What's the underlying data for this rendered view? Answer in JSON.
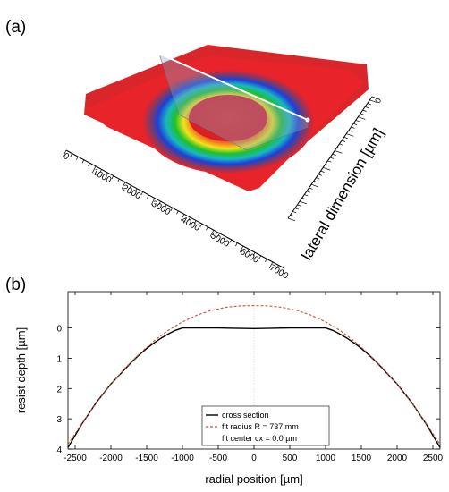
{
  "panel_labels": {
    "a": "(a)",
    "b": "(b)"
  },
  "colors": {
    "surface": "#e8232a",
    "ring_green": "#1fc02a",
    "ring_blue": "#1f3fd8",
    "ring_yellow": "#f2e21c",
    "cross_section": "#000000",
    "fit": "#c8503c"
  },
  "chart_data": [
    {
      "type": "surface3d",
      "axis_label": "lateral dimension [µm]",
      "x_tick_labels": [
        "0",
        "1000",
        "2000",
        "3000",
        "4000",
        "5000",
        "6000",
        "7000"
      ],
      "y_tick_labels": [
        "0"
      ]
    },
    {
      "type": "line",
      "xlabel": "radial position [µm]",
      "ylabel": "resist depth [µm]",
      "xlim": [
        -2600,
        2600
      ],
      "ylim": [
        4,
        -1.2
      ],
      "y_inverted": true,
      "x_ticks": [
        -2500,
        -2000,
        -1500,
        -1000,
        -500,
        0,
        500,
        1000,
        1500,
        2000,
        2500
      ],
      "y_ticks": [
        0,
        1,
        2,
        3,
        4
      ],
      "x_tick_labels": [
        "-2500",
        "-2000",
        "-1500",
        "-1000",
        "-500",
        "0",
        "500",
        "1000",
        "1500",
        "2000",
        "2500"
      ],
      "y_tick_labels": [
        "0",
        "1",
        "2",
        "3",
        "4"
      ],
      "grid": false,
      "center_line_x": 0,
      "series": [
        {
          "name": "cross section",
          "style": "solid",
          "x": [
            -2600,
            -2500,
            -2400,
            -2300,
            -2200,
            -2100,
            -2000,
            -1900,
            -1800,
            -1700,
            -1600,
            -1500,
            -1400,
            -1300,
            -1200,
            -1100,
            -1000,
            -500,
            0,
            500,
            1000,
            1100,
            1200,
            1300,
            1400,
            1500,
            1600,
            1700,
            1800,
            1900,
            2000,
            2100,
            2200,
            2300,
            2400,
            2500,
            2600
          ],
          "y": [
            3.95,
            3.55,
            3.15,
            2.8,
            2.45,
            2.15,
            1.85,
            1.6,
            1.35,
            1.1,
            0.88,
            0.68,
            0.5,
            0.34,
            0.2,
            0.08,
            0.0,
            0.0,
            0.02,
            0.0,
            0.0,
            0.08,
            0.2,
            0.34,
            0.5,
            0.68,
            0.88,
            1.1,
            1.35,
            1.6,
            1.85,
            2.15,
            2.45,
            2.8,
            3.15,
            3.55,
            3.95
          ]
        },
        {
          "name": "fit radius R = 737 mm",
          "style": "dashed",
          "x": [
            -2600,
            -2400,
            -2200,
            -2000,
            -1800,
            -1600,
            -1400,
            -1200,
            -1000,
            -800,
            -600,
            -400,
            -200,
            0,
            200,
            400,
            600,
            800,
            1000,
            1200,
            1400,
            1600,
            1800,
            2000,
            2200,
            2400,
            2600
          ],
          "y": [
            3.85,
            3.13,
            2.47,
            1.86,
            1.32,
            0.85,
            0.43,
            0.08,
            -0.2,
            -0.42,
            -0.58,
            -0.68,
            -0.73,
            -0.74,
            -0.73,
            -0.68,
            -0.58,
            -0.42,
            -0.2,
            0.08,
            0.43,
            0.85,
            1.32,
            1.86,
            2.47,
            3.13,
            3.85
          ]
        }
      ],
      "legend": {
        "placement": "bottom-center",
        "entries": [
          "cross section",
          "fit radius R = 737 mm",
          "fit center cx = 0.0 µm"
        ]
      }
    }
  ]
}
